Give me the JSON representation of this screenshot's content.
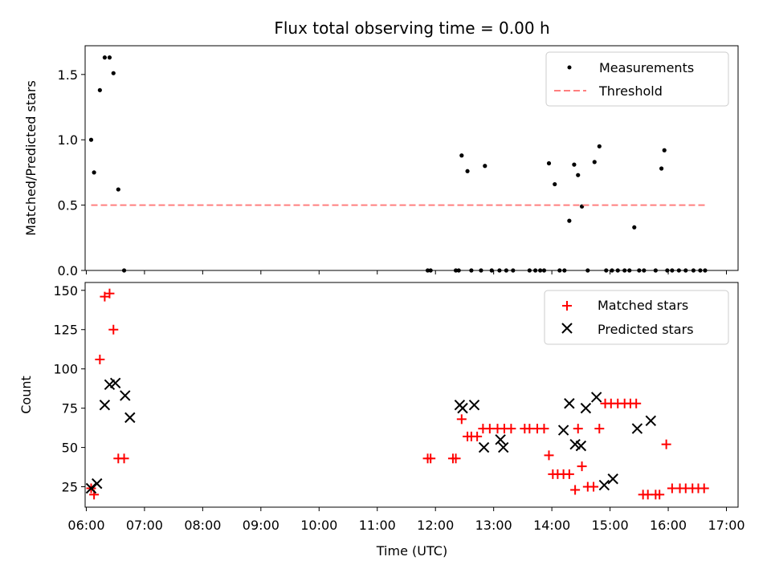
{
  "figure": {
    "title": "Flux total observing time = 0.00 h",
    "xlabel": "Time (UTC)"
  },
  "colors": {
    "measurements": "#000000",
    "threshold": "#ff7f7f",
    "matched": "#ff0000",
    "predicted": "#000000"
  },
  "chart_data": [
    {
      "type": "scatter",
      "ylabel": "Matched/Predicted stars",
      "xlim_hours": [
        5.98,
        17.2
      ],
      "ylim": [
        0,
        1.72
      ],
      "yticks": [
        0.0,
        0.5,
        1.0,
        1.5
      ],
      "ytick_labels": [
        "0.0",
        "0.5",
        "1.0",
        "1.5"
      ],
      "legend_position": "upper-right",
      "grid": false,
      "series": [
        {
          "name": "Measurements",
          "marker": "dot",
          "x": [
            "06:05",
            "06:08",
            "06:14",
            "06:19",
            "06:24",
            "06:28",
            "06:33",
            "06:39",
            "11:52",
            "11:55",
            "12:21",
            "12:24",
            "12:27",
            "12:33",
            "12:37",
            "12:47",
            "12:51",
            "12:58",
            "13:06",
            "13:13",
            "13:20",
            "13:37",
            "13:43",
            "13:48",
            "13:52",
            "13:57",
            "14:03",
            "14:08",
            "14:13",
            "14:18",
            "14:23",
            "14:27",
            "14:31",
            "14:37",
            "14:44",
            "14:49",
            "14:56",
            "15:02",
            "15:08",
            "15:15",
            "15:20",
            "15:25",
            "15:30",
            "15:35",
            "15:47",
            "15:53",
            "15:56",
            "15:59",
            "16:04",
            "16:11",
            "16:18",
            "16:26",
            "16:33",
            "16:38"
          ],
          "y": [
            1.0,
            0.75,
            1.38,
            1.63,
            1.63,
            1.51,
            0.62,
            0.0,
            0.0,
            0.0,
            0.0,
            0.0,
            0.88,
            0.76,
            0.0,
            0.0,
            0.8,
            0.0,
            0.0,
            0.0,
            0.0,
            0.0,
            0.0,
            0.0,
            0.0,
            0.82,
            0.66,
            0.0,
            0.0,
            0.38,
            0.81,
            0.73,
            0.49,
            0.0,
            0.83,
            0.95,
            0.0,
            0.0,
            0.0,
            0.0,
            0.0,
            0.33,
            0.0,
            0.0,
            0.0,
            0.78,
            0.92,
            0.0,
            0.0,
            0.0,
            0.0,
            0.0,
            0.0,
            0.0
          ]
        },
        {
          "name": "Threshold",
          "style": "dashed-line",
          "x": [
            "06:05",
            "16:38"
          ],
          "y": [
            0.5,
            0.5
          ]
        }
      ]
    },
    {
      "type": "scatter",
      "ylabel": "Count",
      "xlim_hours": [
        5.98,
        17.2
      ],
      "ylim": [
        12,
        155
      ],
      "yticks": [
        25,
        50,
        75,
        100,
        125,
        150
      ],
      "ytick_labels": [
        "25",
        "50",
        "75",
        "100",
        "125",
        "150"
      ],
      "xticks": [
        "06:00",
        "07:00",
        "08:00",
        "09:00",
        "10:00",
        "11:00",
        "12:00",
        "13:00",
        "14:00",
        "15:00",
        "16:00",
        "17:00"
      ],
      "legend_position": "upper-right",
      "grid": false,
      "series": [
        {
          "name": "Matched stars",
          "marker": "plus",
          "x": [
            "06:05",
            "06:08",
            "06:14",
            "06:19",
            "06:24",
            "06:28",
            "06:33",
            "06:39",
            "11:52",
            "11:55",
            "12:18",
            "12:21",
            "12:27",
            "12:33",
            "12:37",
            "12:43",
            "12:49",
            "12:56",
            "13:04",
            "13:11",
            "13:18",
            "13:32",
            "13:37",
            "13:45",
            "13:52",
            "13:57",
            "14:01",
            "14:06",
            "14:12",
            "14:18",
            "14:24",
            "14:27",
            "14:31",
            "14:37",
            "14:43",
            "14:49",
            "14:55",
            "15:01",
            "15:08",
            "15:15",
            "15:21",
            "15:27",
            "15:34",
            "15:39",
            "15:47",
            "15:51",
            "15:58",
            "16:04",
            "16:12",
            "16:18",
            "16:25",
            "16:31",
            "16:37"
          ],
          "y": [
            24,
            20,
            106,
            146,
            148,
            125,
            43,
            43,
            43,
            43,
            43,
            43,
            68,
            57,
            57,
            57,
            62,
            62,
            62,
            62,
            62,
            62,
            62,
            62,
            62,
            45,
            33,
            33,
            33,
            33,
            23,
            62,
            38,
            25,
            25,
            62,
            78,
            78,
            78,
            78,
            78,
            78,
            20,
            20,
            20,
            20,
            52,
            24,
            24,
            24,
            24,
            24,
            24
          ]
        },
        {
          "name": "Predicted stars",
          "marker": "x",
          "x": [
            "06:05",
            "06:11",
            "06:19",
            "06:24",
            "06:30",
            "06:40",
            "06:45",
            "12:25",
            "12:28",
            "12:40",
            "12:50",
            "13:07",
            "13:10",
            "14:12",
            "14:18",
            "14:24",
            "14:30",
            "14:35",
            "14:46",
            "14:54",
            "15:03",
            "15:28",
            "15:42"
          ],
          "y": [
            24,
            27,
            77,
            90,
            91,
            83,
            69,
            77,
            75,
            77,
            50,
            55,
            50,
            61,
            78,
            52,
            51,
            75,
            82,
            26,
            30,
            62,
            67
          ]
        }
      ]
    }
  ]
}
